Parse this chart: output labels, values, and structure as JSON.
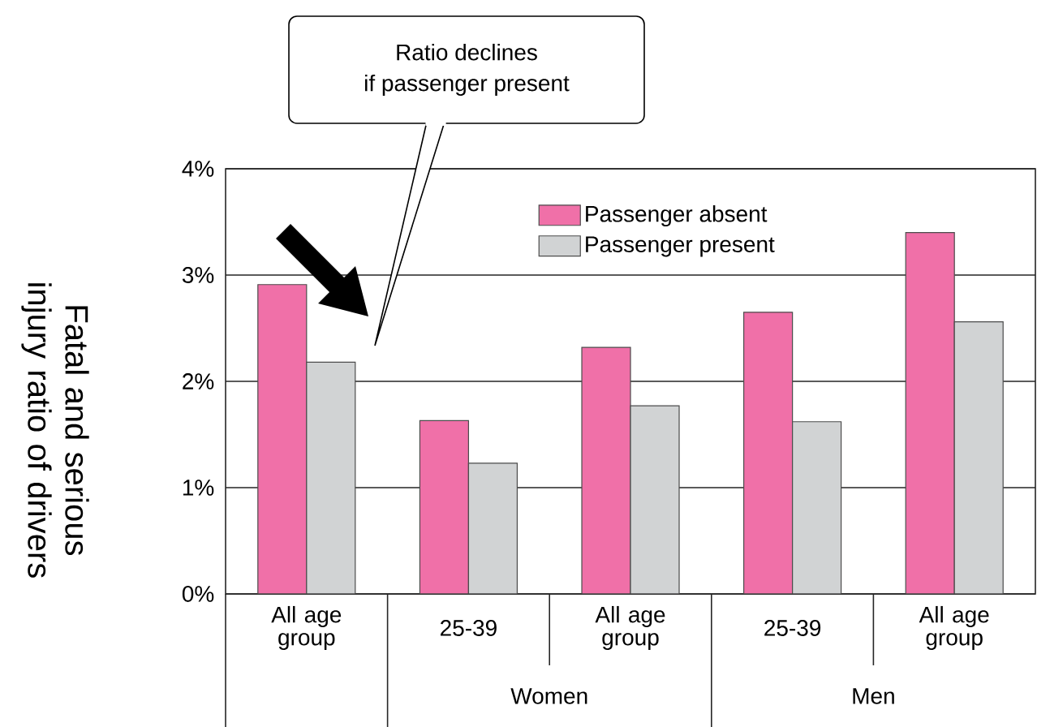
{
  "chart_data": {
    "type": "bar",
    "ylabel": "Fatal and serious injury ratio of drivers",
    "categories": [
      "All age group",
      "25-39",
      "All age group",
      "25-39",
      "All age group"
    ],
    "series": [
      {
        "name": "Passenger absent",
        "color": "#f070a8",
        "values": [
          2.91,
          1.63,
          2.32,
          2.65,
          3.4
        ]
      },
      {
        "name": "Passenger present",
        "color": "#d1d3d4",
        "values": [
          2.18,
          1.23,
          1.77,
          1.62,
          2.56
        ]
      }
    ],
    "ylim": [
      0,
      4
    ],
    "yticks": [
      {
        "value": 0,
        "label": "0%"
      },
      {
        "value": 1,
        "label": "1%"
      },
      {
        "value": 2,
        "label": "2%"
      },
      {
        "value": 3,
        "label": "3%"
      },
      {
        "value": 4,
        "label": "4%"
      }
    ],
    "grid": "y",
    "legend": "top right",
    "annotations": [
      "Ratio declines",
      "if passenger present",
      "Women",
      "Men"
    ]
  }
}
